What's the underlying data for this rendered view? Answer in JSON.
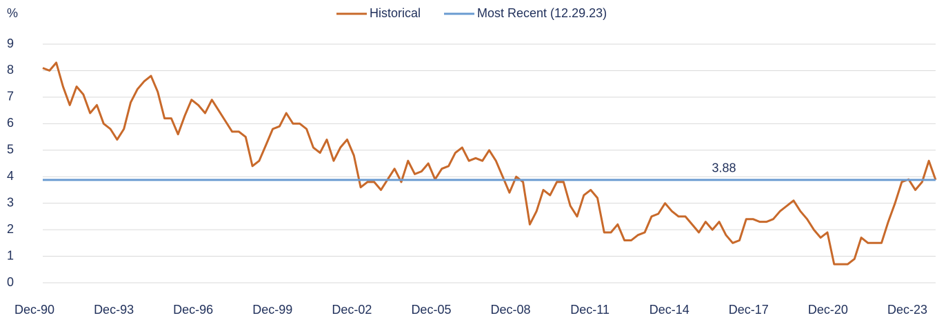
{
  "chart_data": {
    "type": "line",
    "y_label": "%",
    "categories": [
      "Dec-90",
      null,
      null,
      null,
      null,
      null,
      null,
      null,
      null,
      null,
      null,
      null,
      "Dec-93",
      null,
      null,
      null,
      null,
      null,
      null,
      null,
      null,
      null,
      null,
      null,
      "Dec-96",
      null,
      null,
      null,
      null,
      null,
      null,
      null,
      null,
      null,
      null,
      null,
      "Dec-99",
      null,
      null,
      null,
      null,
      null,
      null,
      null,
      null,
      null,
      null,
      null,
      "Dec-02",
      null,
      null,
      null,
      null,
      null,
      null,
      null,
      null,
      null,
      null,
      null,
      "Dec-05",
      null,
      null,
      null,
      null,
      null,
      null,
      null,
      null,
      null,
      null,
      null,
      "Dec-08",
      null,
      null,
      null,
      null,
      null,
      null,
      null,
      null,
      null,
      null,
      null,
      "Dec-11",
      null,
      null,
      null,
      null,
      null,
      null,
      null,
      null,
      null,
      null,
      null,
      "Dec-14",
      null,
      null,
      null,
      null,
      null,
      null,
      null,
      null,
      null,
      null,
      null,
      "Dec-17",
      null,
      null,
      null,
      null,
      null,
      null,
      null,
      null,
      null,
      null,
      null,
      "Dec-20",
      null,
      null,
      null,
      null,
      null,
      null,
      null,
      null,
      null,
      null,
      null,
      "Dec-23"
    ],
    "series": [
      {
        "name": "Historical",
        "color": "#c8692a",
        "values": [
          8.1,
          8.0,
          8.3,
          7.4,
          6.7,
          7.4,
          7.1,
          6.4,
          6.7,
          6.0,
          5.8,
          5.4,
          5.8,
          6.8,
          7.3,
          7.6,
          7.8,
          7.2,
          6.2,
          6.2,
          5.6,
          6.3,
          6.9,
          6.7,
          6.4,
          6.9,
          6.5,
          6.1,
          5.7,
          5.7,
          5.5,
          4.4,
          4.6,
          5.2,
          5.8,
          5.9,
          6.4,
          6.0,
          6.0,
          5.8,
          5.1,
          4.9,
          5.4,
          4.6,
          5.1,
          5.4,
          4.8,
          3.6,
          3.8,
          3.8,
          3.5,
          3.9,
          4.3,
          3.8,
          4.6,
          4.1,
          4.2,
          4.5,
          3.9,
          4.3,
          4.4,
          4.9,
          5.1,
          4.6,
          4.7,
          4.6,
          5.0,
          4.6,
          4.0,
          3.4,
          4.0,
          3.8,
          2.2,
          2.7,
          3.5,
          3.3,
          3.8,
          3.8,
          2.9,
          2.5,
          3.3,
          3.5,
          3.2,
          1.9,
          1.9,
          2.2,
          1.6,
          1.6,
          1.8,
          1.9,
          2.5,
          2.6,
          3.0,
          2.7,
          2.5,
          2.5,
          2.2,
          1.9,
          2.3,
          2.0,
          2.3,
          1.8,
          1.5,
          1.6,
          2.4,
          2.4,
          2.3,
          2.3,
          2.4,
          2.7,
          2.9,
          3.1,
          2.7,
          2.4,
          2.0,
          1.7,
          1.9,
          0.7,
          0.7,
          0.7,
          0.9,
          1.7,
          1.5,
          1.5,
          1.5,
          2.3,
          3.0,
          3.8,
          3.9,
          3.5,
          3.8,
          4.6,
          3.88
        ]
      },
      {
        "name": "Most Recent (12.29.23)",
        "color": "#6a9bd1",
        "reference_value": 3.88
      }
    ],
    "ylim": [
      0,
      9
    ],
    "yticks": [
      0,
      1,
      2,
      3,
      4,
      5,
      6,
      7,
      8,
      9
    ],
    "grid": true,
    "legend": "top"
  }
}
